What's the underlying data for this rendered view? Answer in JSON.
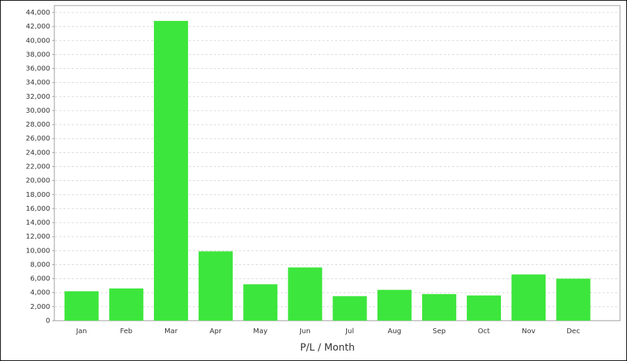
{
  "chart_data": {
    "type": "bar",
    "x_label": "P/L / Month",
    "categories": [
      "Jan",
      "Feb",
      "Mar",
      "Apr",
      "May",
      "Jun",
      "Jul",
      "Aug",
      "Sep",
      "Oct",
      "Nov",
      "Dec"
    ],
    "values": [
      4200,
      4600,
      42800,
      9900,
      5200,
      7600,
      3500,
      4400,
      3800,
      3600,
      6600,
      6000
    ],
    "color": "#3de63d",
    "ylim": [
      0,
      44000
    ],
    "yticks": [
      0,
      {
        "value": 2000,
        "label": "2,000"
      },
      {
        "value": 4000,
        "label": "4,000"
      },
      {
        "value": 6000,
        "label": "6,000"
      },
      {
        "value": 8000,
        "label": "8,000"
      },
      {
        "value": 10000,
        "label": "10,000"
      },
      {
        "value": 12000,
        "label": "12,000"
      },
      {
        "value": 14000,
        "label": "14,000"
      },
      {
        "value": 16000,
        "label": "16,000"
      },
      {
        "value": 18000,
        "label": "18,000"
      },
      {
        "value": 20000,
        "label": "20,000"
      },
      {
        "value": 22000,
        "label": "22,000"
      },
      {
        "value": 24000,
        "label": "24,000"
      },
      {
        "value": 26000,
        "label": "26,000"
      },
      {
        "value": 28000,
        "label": "28,000"
      },
      {
        "value": 30000,
        "label": "30,000"
      },
      {
        "value": 32000,
        "label": "32,000"
      },
      {
        "value": 34000,
        "label": "34,000"
      },
      {
        "value": 36000,
        "label": "36,000"
      },
      {
        "value": 38000,
        "label": "38,000"
      },
      {
        "value": 40000,
        "label": "40,000"
      },
      {
        "value": 42000,
        "label": "42,000"
      },
      {
        "value": 44000,
        "label": "44,000"
      }
    ],
    "grid": true
  }
}
